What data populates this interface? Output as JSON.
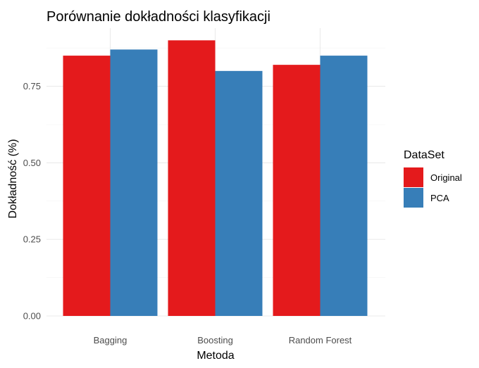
{
  "chart_data": {
    "type": "bar",
    "title": "Porównanie dokładności klasyfikacji",
    "xlabel": "Metoda",
    "ylabel": "Dokładność (%)",
    "categories": [
      "Bagging",
      "Boosting",
      "Random Forest"
    ],
    "series": [
      {
        "name": "Original",
        "color": "#E41A1C",
        "values": [
          0.85,
          0.9,
          0.82
        ]
      },
      {
        "name": "PCA",
        "color": "#377EB8",
        "values": [
          0.87,
          0.8,
          0.85
        ]
      }
    ],
    "ylim": [
      0,
      0.9
    ],
    "yticks": [
      0.0,
      0.25,
      0.5,
      0.75
    ],
    "ytick_labels": [
      "0.00",
      "0.25",
      "0.50",
      "0.75"
    ],
    "legend": {
      "title": "DataSet",
      "position": "right"
    },
    "grid": true
  }
}
